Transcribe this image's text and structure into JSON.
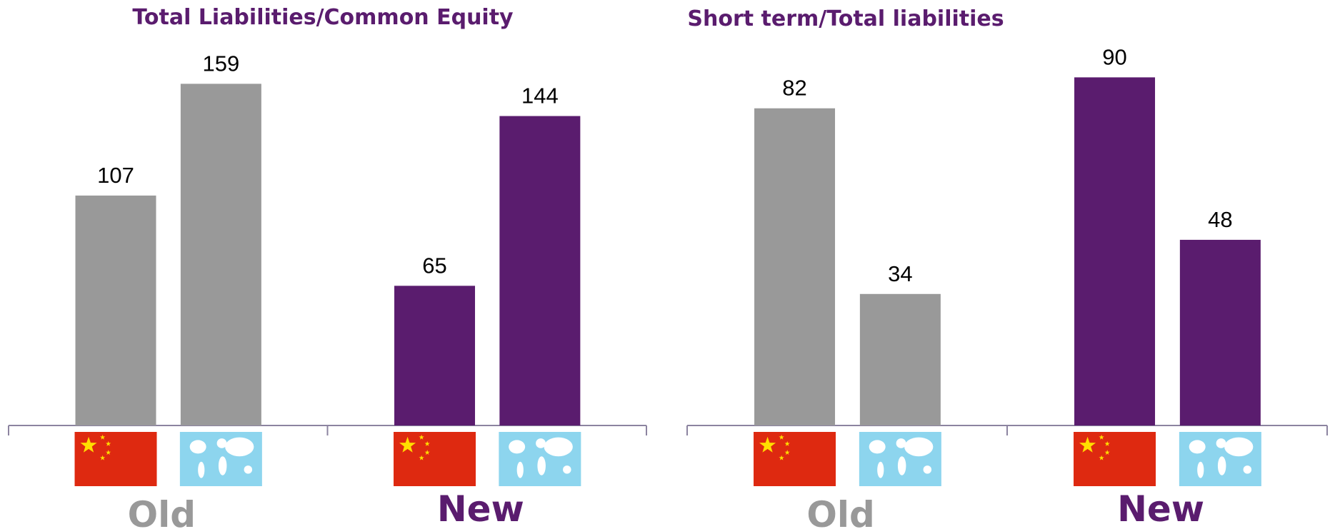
{
  "chart_data": [
    {
      "type": "bar",
      "title": "Total Liabilities/Common Equity",
      "categories": [
        "Old",
        "New"
      ],
      "colors": [
        "#999999",
        "#5a1c6e"
      ],
      "series": [
        {
          "values": [
            107,
            65
          ]
        },
        {
          "values": [
            159,
            144
          ]
        }
      ],
      "ylim": [
        0,
        198
      ]
    },
    {
      "type": "bar",
      "title": "Short term/Total liabilities",
      "categories": [
        "Old",
        "New"
      ],
      "colors": [
        "#999999",
        "#5a1c6e"
      ],
      "series": [
        {
          "values": [
            82,
            90
          ]
        },
        {
          "values": [
            34,
            48
          ]
        }
      ],
      "ylim": [
        0,
        110
      ]
    }
  ]
}
